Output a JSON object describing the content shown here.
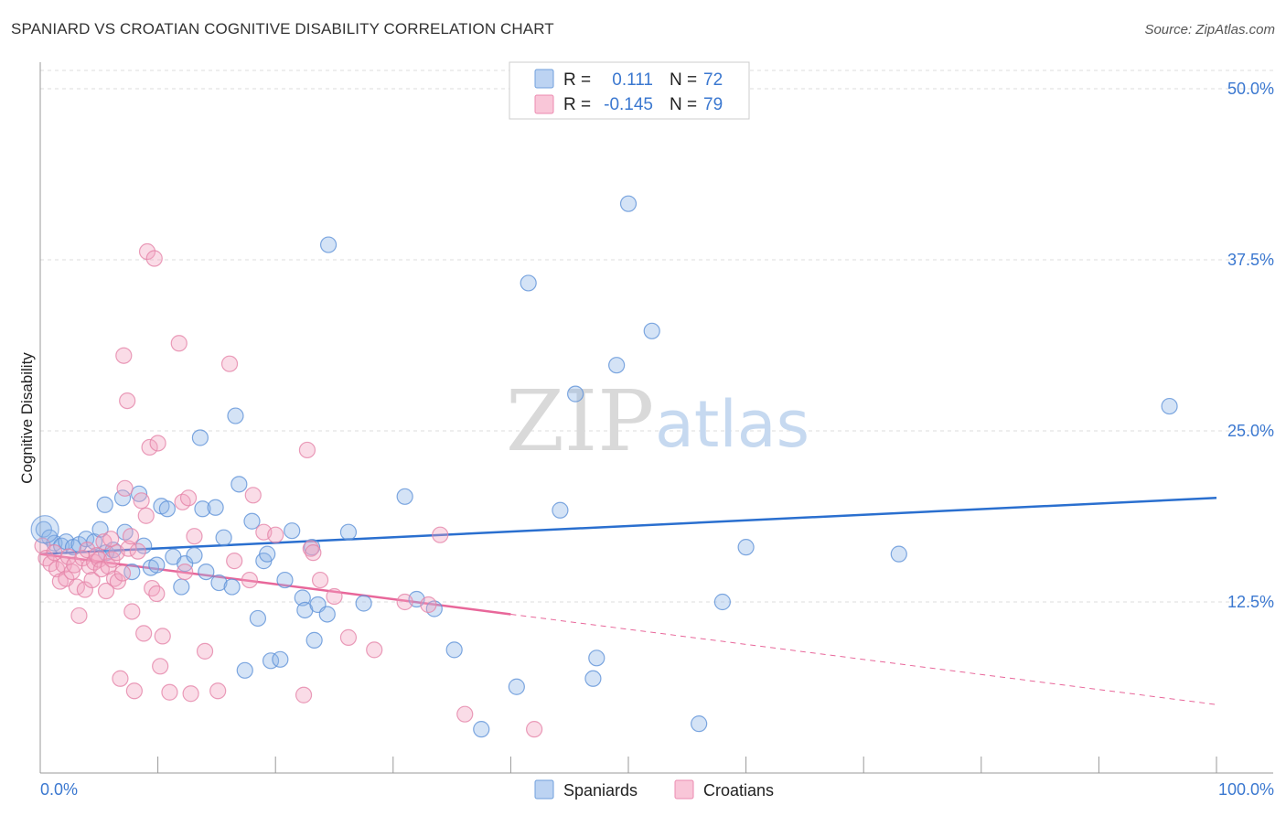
{
  "title": "SPANIARD VS CROATIAN COGNITIVE DISABILITY CORRELATION CHART",
  "source": "Source: ZipAtlas.com",
  "watermark": {
    "zip": "ZIP",
    "atlas": "atlas"
  },
  "colors": {
    "spaniards": "#8fb6e8",
    "spaniards_line": "#2a6fcf",
    "croatians": "#f1a3bf",
    "croatians_line": "#e8679a",
    "tick_label": "#3b78d0",
    "grid": "#dddddd"
  },
  "legend": {
    "rows": [
      {
        "r_label": "R =",
        "r_value": "0.111",
        "n_label": "N =",
        "n_value": "72"
      },
      {
        "r_label": "R =",
        "r_value": "-0.145",
        "n_label": "N =",
        "n_value": "79"
      }
    ]
  },
  "bottom_legend": [
    "Spaniards",
    "Croatians"
  ],
  "chart_data": {
    "type": "scatter",
    "title": "SPANIARD VS CROATIAN COGNITIVE DISABILITY CORRELATION CHART",
    "ylabel": "Cognitive Disability",
    "xlabel": "",
    "xlim": [
      0,
      100
    ],
    "ylim": [
      0,
      50
    ],
    "x_tick_labels": [
      "0.0%",
      "100.0%"
    ],
    "y_ticks": [
      12.5,
      25.0,
      37.5,
      50.0
    ],
    "y_tick_labels": [
      "12.5%",
      "25.0%",
      "37.5%",
      "50.0%"
    ],
    "grid": true,
    "legend_position": "top-center",
    "series": [
      {
        "name": "Spaniards",
        "r": 0.111,
        "n": 72,
        "trend": {
          "x": [
            0,
            100
          ],
          "y": [
            16.0,
            20.1
          ],
          "dashed_from": null
        },
        "points": [
          [
            0.3,
            17.8
          ],
          [
            0.8,
            17.2
          ],
          [
            1.2,
            16.8
          ],
          [
            1.8,
            16.6
          ],
          [
            2.2,
            16.9
          ],
          [
            2.8,
            16.5
          ],
          [
            3.3,
            16.7
          ],
          [
            3.9,
            17.1
          ],
          [
            4.6,
            16.9
          ],
          [
            5.1,
            17.8
          ],
          [
            5.6,
            16.1
          ],
          [
            5.5,
            19.6
          ],
          [
            6.2,
            16.3
          ],
          [
            7.2,
            17.6
          ],
          [
            7.8,
            14.7
          ],
          [
            8.4,
            20.4
          ],
          [
            8.8,
            16.6
          ],
          [
            7.0,
            20.1
          ],
          [
            9.4,
            15.0
          ],
          [
            9.9,
            15.2
          ],
          [
            10.3,
            19.5
          ],
          [
            10.8,
            19.3
          ],
          [
            11.3,
            15.8
          ],
          [
            12.0,
            13.6
          ],
          [
            12.3,
            15.3
          ],
          [
            13.1,
            15.9
          ],
          [
            13.6,
            24.5
          ],
          [
            13.8,
            19.3
          ],
          [
            14.1,
            14.7
          ],
          [
            14.9,
            19.4
          ],
          [
            15.2,
            13.9
          ],
          [
            15.6,
            17.2
          ],
          [
            16.3,
            13.6
          ],
          [
            16.6,
            26.1
          ],
          [
            16.9,
            21.1
          ],
          [
            17.4,
            7.5
          ],
          [
            18.0,
            18.4
          ],
          [
            18.5,
            11.3
          ],
          [
            19.0,
            15.5
          ],
          [
            19.3,
            16.0
          ],
          [
            19.6,
            8.2
          ],
          [
            20.4,
            8.3
          ],
          [
            20.8,
            14.1
          ],
          [
            21.4,
            17.7
          ],
          [
            22.3,
            12.8
          ],
          [
            22.5,
            11.9
          ],
          [
            23.1,
            16.5
          ],
          [
            23.3,
            9.7
          ],
          [
            23.6,
            12.3
          ],
          [
            24.4,
            11.6
          ],
          [
            24.5,
            38.6
          ],
          [
            26.2,
            17.6
          ],
          [
            27.5,
            12.4
          ],
          [
            31.0,
            20.2
          ],
          [
            32.0,
            12.7
          ],
          [
            33.5,
            12.0
          ],
          [
            35.2,
            9.0
          ],
          [
            37.5,
            3.2
          ],
          [
            40.5,
            6.3
          ],
          [
            41.5,
            35.8
          ],
          [
            44.2,
            19.2
          ],
          [
            45.5,
            27.7
          ],
          [
            47.0,
            6.9
          ],
          [
            47.3,
            8.4
          ],
          [
            49.0,
            29.8
          ],
          [
            50.0,
            41.6
          ],
          [
            52.0,
            32.3
          ],
          [
            56.0,
            3.6
          ],
          [
            58.0,
            12.5
          ],
          [
            60.0,
            16.5
          ],
          [
            73.0,
            16.0
          ],
          [
            96.0,
            26.8
          ]
        ]
      },
      {
        "name": "Croatians",
        "r": -0.145,
        "n": 79,
        "trend": {
          "x": [
            0,
            100
          ],
          "y": [
            16.0,
            5.0
          ],
          "dashed_from": 40.0
        },
        "points": [
          [
            0.2,
            16.6
          ],
          [
            0.5,
            15.7
          ],
          [
            0.9,
            15.3
          ],
          [
            1.2,
            16.1
          ],
          [
            1.4,
            14.9
          ],
          [
            1.7,
            14.0
          ],
          [
            2.0,
            15.2
          ],
          [
            2.2,
            14.2
          ],
          [
            2.4,
            15.8
          ],
          [
            2.7,
            14.7
          ],
          [
            2.9,
            15.2
          ],
          [
            3.1,
            13.6
          ],
          [
            3.3,
            11.5
          ],
          [
            3.6,
            15.7
          ],
          [
            3.8,
            13.4
          ],
          [
            4.0,
            16.3
          ],
          [
            4.2,
            15.1
          ],
          [
            4.4,
            14.1
          ],
          [
            4.6,
            15.4
          ],
          [
            4.8,
            15.9
          ],
          [
            5.0,
            15.6
          ],
          [
            5.2,
            14.9
          ],
          [
            5.4,
            16.9
          ],
          [
            5.6,
            13.3
          ],
          [
            5.8,
            15.1
          ],
          [
            6.0,
            17.1
          ],
          [
            6.1,
            15.6
          ],
          [
            6.3,
            14.2
          ],
          [
            6.5,
            16.1
          ],
          [
            6.6,
            14.0
          ],
          [
            6.8,
            6.9
          ],
          [
            7.0,
            14.6
          ],
          [
            7.1,
            30.5
          ],
          [
            7.2,
            20.8
          ],
          [
            7.4,
            27.2
          ],
          [
            7.5,
            16.4
          ],
          [
            7.7,
            17.3
          ],
          [
            7.8,
            11.8
          ],
          [
            8.0,
            6.0
          ],
          [
            8.3,
            16.2
          ],
          [
            8.6,
            19.9
          ],
          [
            8.8,
            10.2
          ],
          [
            9.0,
            18.8
          ],
          [
            9.1,
            38.1
          ],
          [
            9.3,
            23.8
          ],
          [
            9.5,
            13.5
          ],
          [
            9.7,
            37.6
          ],
          [
            9.9,
            13.1
          ],
          [
            10.0,
            24.1
          ],
          [
            10.2,
            7.8
          ],
          [
            10.4,
            10.0
          ],
          [
            11.0,
            5.9
          ],
          [
            11.8,
            31.4
          ],
          [
            12.1,
            19.8
          ],
          [
            12.3,
            14.7
          ],
          [
            12.6,
            20.1
          ],
          [
            12.8,
            5.8
          ],
          [
            13.1,
            17.3
          ],
          [
            14.0,
            8.9
          ],
          [
            15.1,
            6.0
          ],
          [
            16.1,
            29.9
          ],
          [
            16.5,
            15.5
          ],
          [
            17.8,
            14.1
          ],
          [
            18.1,
            20.3
          ],
          [
            19.0,
            17.6
          ],
          [
            20.0,
            17.4
          ],
          [
            22.4,
            5.7
          ],
          [
            22.7,
            23.6
          ],
          [
            23.0,
            16.4
          ],
          [
            23.2,
            16.1
          ],
          [
            23.8,
            14.1
          ],
          [
            25.0,
            12.9
          ],
          [
            26.2,
            9.9
          ],
          [
            28.4,
            9.0
          ],
          [
            31.0,
            12.5
          ],
          [
            33.0,
            12.3
          ],
          [
            34.0,
            17.4
          ],
          [
            36.1,
            4.3
          ],
          [
            42.0,
            3.2
          ]
        ]
      }
    ]
  }
}
